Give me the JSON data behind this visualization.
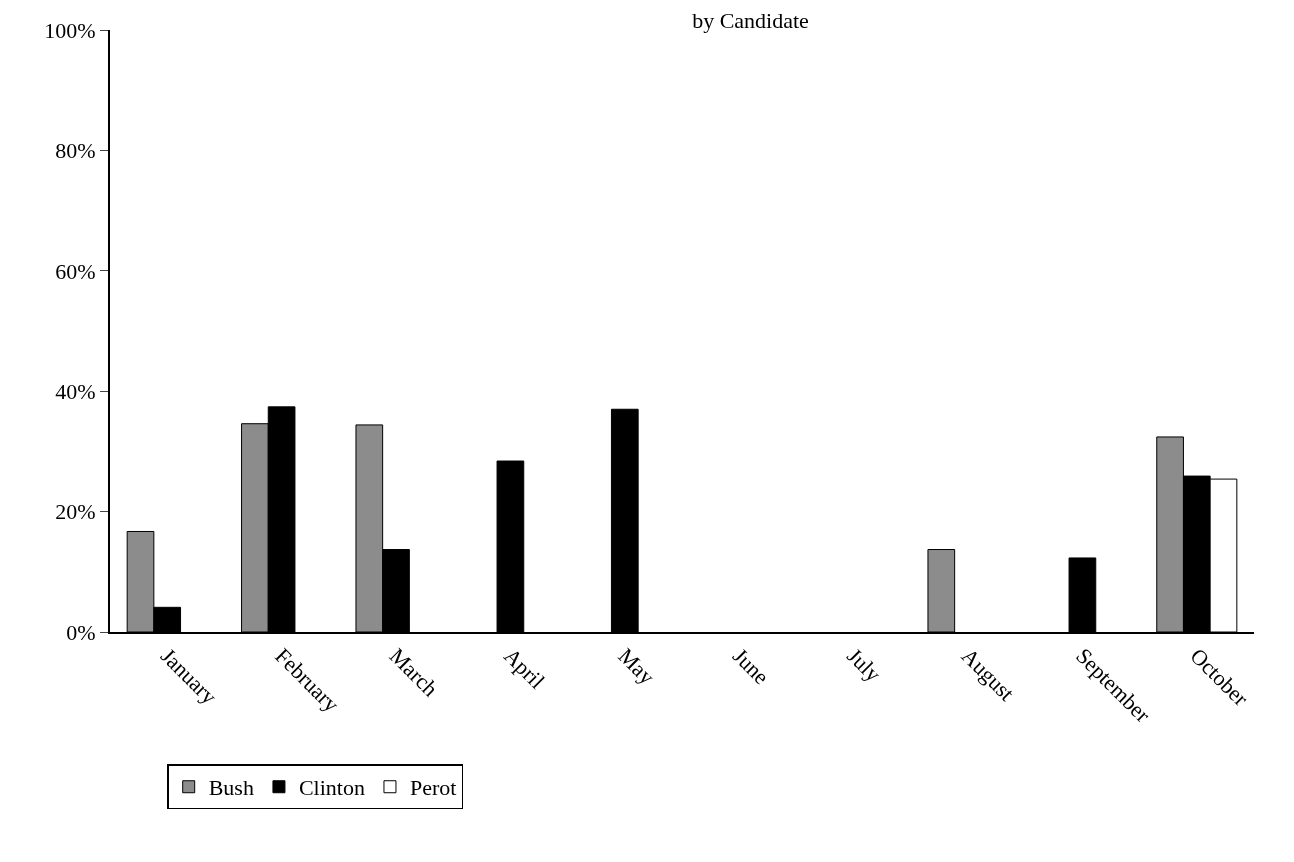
{
  "chart_data": {
    "type": "bar",
    "title": "by Candidate",
    "categories": [
      "January",
      "February",
      "March",
      "April",
      "May",
      "June",
      "July",
      "August",
      "September",
      "October"
    ],
    "series": [
      {
        "name": "Bush",
        "color": "#8c8c8c",
        "values": [
          16.7,
          34.6,
          34.4,
          null,
          null,
          null,
          null,
          13.7,
          null,
          32.4
        ]
      },
      {
        "name": "Clinton",
        "color": "#000000",
        "values": [
          4.1,
          37.4,
          13.7,
          28.4,
          37,
          null,
          null,
          null,
          12.3,
          25.9
        ]
      },
      {
        "name": "Perot",
        "color": "#ffffff",
        "values": [
          null,
          null,
          null,
          null,
          null,
          null,
          null,
          null,
          null,
          25.4
        ]
      }
    ],
    "ylim": [
      0,
      100
    ],
    "yticks": [
      {
        "value": 0,
        "label": "0%"
      },
      {
        "value": 20,
        "label": "20%"
      },
      {
        "value": 40,
        "label": "40%"
      },
      {
        "value": 60,
        "label": "60%"
      },
      {
        "value": 80,
        "label": "80%"
      },
      {
        "value": 100,
        "label": "100%"
      }
    ],
    "legend": "bottom left"
  }
}
